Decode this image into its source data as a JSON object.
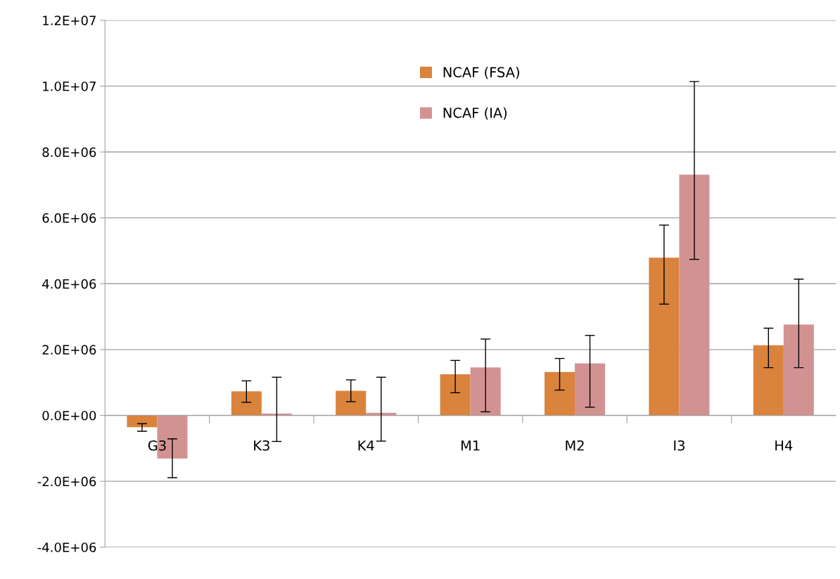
{
  "chart_data": {
    "type": "bar",
    "categories": [
      "G3",
      "K3",
      "K4",
      "M1",
      "M2",
      "I3",
      "H4"
    ],
    "series": [
      {
        "name": "NCAF (FSA)",
        "color": "#da833c",
        "values": [
          -360000,
          730000,
          750000,
          1250000,
          1320000,
          4790000,
          2130000
        ],
        "errors": [
          [
            -480000,
            -250000
          ],
          [
            400000,
            1050000
          ],
          [
            420000,
            1080000
          ],
          [
            690000,
            1670000
          ],
          [
            770000,
            1730000
          ],
          [
            3380000,
            5780000
          ],
          [
            1450000,
            2650000
          ]
        ]
      },
      {
        "name": "NCAF (IA)",
        "color": "#d39292",
        "values": [
          -1310000,
          60000,
          80000,
          1460000,
          1580000,
          7310000,
          2760000
        ],
        "errors": [
          [
            -1890000,
            -710000
          ],
          [
            -790000,
            1160000
          ],
          [
            -780000,
            1160000
          ],
          [
            110000,
            2320000
          ],
          [
            250000,
            2430000
          ],
          [
            4740000,
            10140000
          ],
          [
            1450000,
            4140000
          ]
        ]
      }
    ],
    "ylim": [
      -4000000,
      12000000
    ],
    "yticks": [
      {
        "value": -4000000,
        "label": "-4.0E+06"
      },
      {
        "value": -2000000,
        "label": "-2.0E+06"
      },
      {
        "value": 0,
        "label": "0.0E+00"
      },
      {
        "value": 2000000,
        "label": "2.0E+06"
      },
      {
        "value": 4000000,
        "label": "4.0E+06"
      },
      {
        "value": 6000000,
        "label": "6.0E+06"
      },
      {
        "value": 8000000,
        "label": "8.0E+06"
      },
      {
        "value": 10000000,
        "label": "1.0E+07"
      },
      {
        "value": 12000000,
        "label": "1.2E+07"
      }
    ],
    "grid": "y",
    "legend": "top"
  }
}
